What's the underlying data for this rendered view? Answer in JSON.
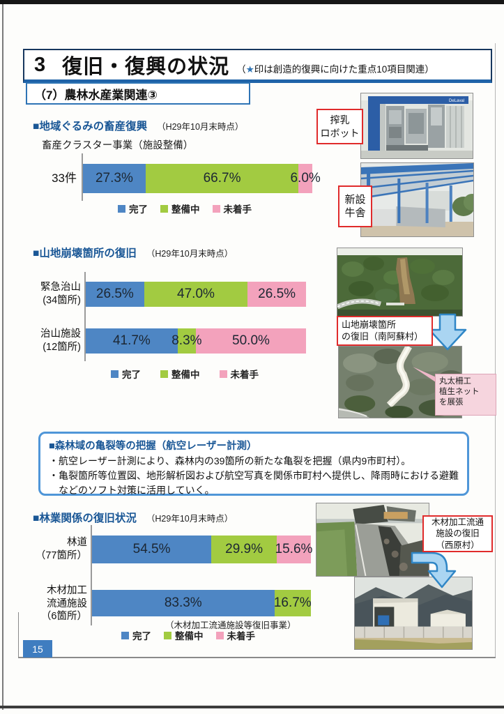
{
  "page": {
    "bullet": "■",
    "title_number": "3",
    "title": "復旧・復興の状況",
    "title_note": {
      "open": "（",
      "star": "★",
      "rest": "印は創造的復興に向けた重点10項目関連）"
    },
    "section_label": "（7）農林水産業関連③",
    "page_number": "15"
  },
  "legend": {
    "done": "完了",
    "in_progress": "整備中",
    "not_started": "未着手"
  },
  "colors": {
    "series": {
      "完了": "#4e86c4",
      "整備中": "#a2cb41",
      "未着手": "#f3a2bc"
    },
    "heading_text": "#1a5796",
    "title_border": "#17375e",
    "title_underline": "#1f63a8",
    "section_border": "#2e74b5",
    "info_border": "#4f96d8",
    "red_label_border": "#e02b2b",
    "callout_bg": "#f6d5de",
    "arrow_fill": "#aad5f2",
    "arrow_stroke": "#2f86c6",
    "page_number_bg": "#3f7dc0"
  },
  "chart_data": [
    {
      "type": "bar",
      "orientation": "horizontal",
      "stacked": true,
      "title": "地域ぐるみの畜産復興",
      "as_of": "（H29年10月末時点）",
      "subtitle": "畜産クラスター事業（施設整備）",
      "categories": [
        "33件"
      ],
      "series": [
        {
          "name": "完了",
          "values": [
            27.3
          ]
        },
        {
          "name": "整備中",
          "values": [
            66.7
          ]
        },
        {
          "name": "未着手",
          "values": [
            6.0
          ]
        }
      ],
      "unit": "%",
      "xlim": [
        0,
        100
      ],
      "value_labels": "inside",
      "legend_position": "bottom"
    },
    {
      "type": "bar",
      "orientation": "horizontal",
      "stacked": true,
      "title": "山地崩壊箇所の復旧",
      "as_of": "（H29年10月末時点）",
      "categories": [
        "緊急治山\n(34箇所)",
        "治山施設\n(12箇所)"
      ],
      "series": [
        {
          "name": "完了",
          "values": [
            26.5,
            41.7
          ]
        },
        {
          "name": "整備中",
          "values": [
            47.0,
            8.3
          ]
        },
        {
          "name": "未着手",
          "values": [
            26.5,
            50.0
          ]
        }
      ],
      "unit": "%",
      "xlim": [
        0,
        100
      ],
      "value_labels": "inside",
      "legend_position": "bottom"
    },
    {
      "type": "bar",
      "orientation": "horizontal",
      "stacked": true,
      "title": "林業関係の復旧状況",
      "as_of": "（H29年10月末時点）",
      "categories": [
        "林道\n（77箇所）",
        "木材加工\n流通施設\n（6箇所）"
      ],
      "series": [
        {
          "name": "完了",
          "values": [
            54.5,
            83.3
          ]
        },
        {
          "name": "整備中",
          "values": [
            29.9,
            16.7
          ]
        },
        {
          "name": "未着手",
          "values": [
            15.6,
            0
          ]
        }
      ],
      "note": "（木材加工流通施設等復旧事業）",
      "unit": "%",
      "xlim": [
        0,
        100
      ],
      "value_labels": "inside",
      "legend_position": "bottom"
    }
  ],
  "info_box": {
    "title": "森林域の亀裂等の把握（航空レーザー計測）",
    "bullets": [
      "・航空レーザー計測により、森林内の39箇所の新たな亀裂を把握（県内9市町村）。",
      "・亀裂箇所等位置図、地形解析図および航空写真を関係市町村へ提供し、降雨時における避難などのソフト対策に活用していく。"
    ]
  },
  "photos": {
    "delaval_logo": "DeLaval",
    "labels": {
      "milking_robot": [
        "搾乳",
        "ロボット"
      ],
      "new_barn": [
        "新設",
        "牛舎"
      ],
      "landslide_restoration": [
        "山地崩壊箇所",
        "の復旧（南阿蘇村）"
      ],
      "log_fence_callout": [
        "丸太柵工",
        "植生ネット",
        "を展張"
      ],
      "wood_facility_restoration": [
        "木材加工流通",
        "施設の復旧",
        "（西原村）"
      ]
    }
  }
}
